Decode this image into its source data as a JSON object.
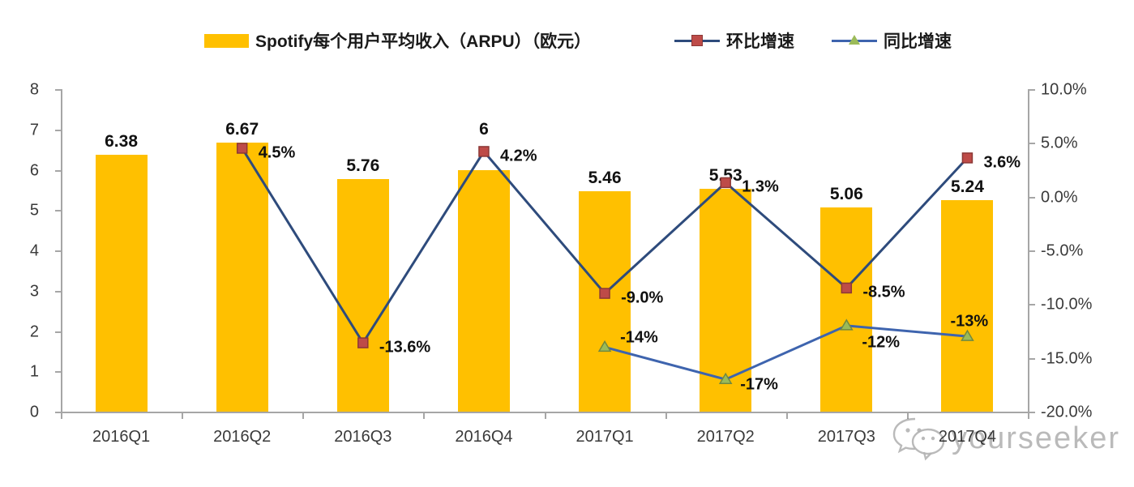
{
  "chart_data": {
    "type": "bar+line",
    "categories": [
      "2016Q1",
      "2016Q2",
      "2016Q3",
      "2016Q4",
      "2017Q1",
      "2017Q2",
      "2017Q3",
      "2017Q4"
    ],
    "series": [
      {
        "name": "Spotify每个用户平均收入（ARPU）（欧元）",
        "type": "bar",
        "axis": "left",
        "color": "#FFC000",
        "values": [
          6.38,
          6.67,
          5.76,
          6,
          5.46,
          5.53,
          5.06,
          5.24
        ],
        "labels": [
          "6.38",
          "6.67",
          "5.76",
          "6",
          "5.46",
          "5.53",
          "5.06",
          "5.24"
        ]
      },
      {
        "name": "环比增速",
        "type": "line",
        "axis": "right",
        "color": "#2E4B7C",
        "marker": "square",
        "marker_color": "#BE4B48",
        "marker_edge": "#8C3836",
        "values": [
          null,
          4.5,
          -13.6,
          4.2,
          -9.0,
          1.3,
          -8.5,
          3.6
        ],
        "labels": [
          null,
          "4.5%",
          "-13.6%",
          "4.2%",
          "-9.0%",
          "1.3%",
          "-8.5%",
          "3.6%"
        ]
      },
      {
        "name": "同比增速",
        "type": "line",
        "axis": "right",
        "color": "#3E64AE",
        "marker": "triangle",
        "marker_color": "#9BBB59",
        "marker_edge": "#71893F",
        "values": [
          null,
          null,
          null,
          null,
          -14,
          -17,
          -12,
          -13
        ],
        "labels": [
          null,
          null,
          null,
          null,
          "-14%",
          "-17%",
          "-12%",
          "-13%"
        ]
      }
    ],
    "left_axis": {
      "range": [
        0,
        8
      ],
      "ticks": [
        "0",
        "1",
        "2",
        "3",
        "4",
        "5",
        "6",
        "7",
        "8"
      ]
    },
    "right_axis": {
      "range": [
        -20,
        10
      ],
      "ticks": [
        "-20.0%",
        "-15.0%",
        "-10.0%",
        "-5.0%",
        "0.0%",
        "5.0%",
        "10.0%"
      ]
    },
    "legend_position": "top",
    "grid": false
  },
  "watermark": {
    "text": "yourseeker",
    "icon": "wechat-bubbles-icon"
  }
}
